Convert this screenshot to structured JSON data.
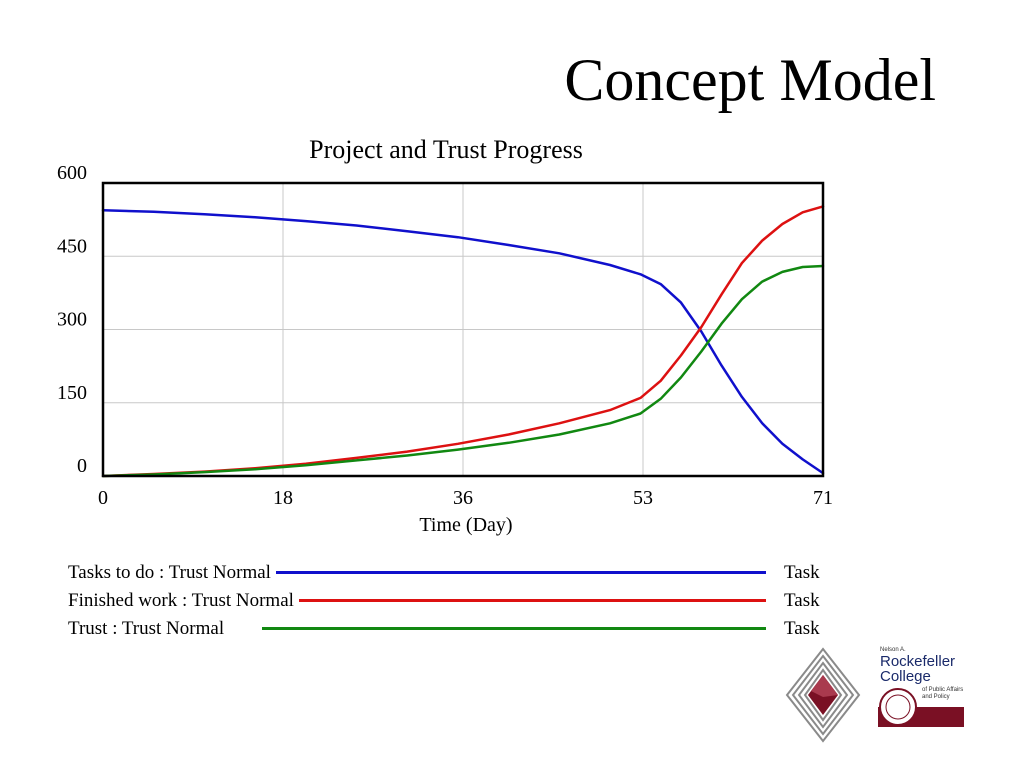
{
  "slide": {
    "title": "Concept Model"
  },
  "chart_data": {
    "type": "line",
    "title": "Project and Trust Progress",
    "xlabel": "Time (Day)",
    "ylabel": "",
    "xlim": [
      0,
      71
    ],
    "ylim": [
      0,
      600
    ],
    "x_ticks": [
      "0",
      "18",
      "36",
      "53",
      "71"
    ],
    "x_tick_values": [
      0,
      17.75,
      35.5,
      53.25,
      71
    ],
    "y_ticks": [
      "0",
      "150",
      "300",
      "450",
      "600"
    ],
    "y_tick_values": [
      0,
      150,
      300,
      450,
      600
    ],
    "grid": true,
    "legend_position": "bottom",
    "x": [
      0,
      5,
      10,
      15,
      20,
      25,
      30,
      35,
      40,
      45,
      50,
      53,
      55,
      57,
      59,
      61,
      63,
      65,
      67,
      69,
      71
    ],
    "series": [
      {
        "name": "Tasks to do : Trust Normal",
        "unit": "Task",
        "color": "#1010cc",
        "values": [
          544,
          541,
          536,
          530,
          522,
          513,
          501,
          489,
          473,
          456,
          432,
          413,
          393,
          355,
          296,
          226,
          162,
          108,
          66,
          34,
          6
        ]
      },
      {
        "name": "Finished work : Trust Normal",
        "unit": "Task",
        "color": "#dd1111",
        "values": [
          0,
          4,
          9,
          16,
          25,
          37,
          50,
          66,
          85,
          108,
          135,
          160,
          195,
          247,
          305,
          372,
          436,
          482,
          516,
          540,
          552
        ]
      },
      {
        "name": "Trust : Trust Normal",
        "unit": "Task",
        "color": "#118811",
        "values": [
          0,
          3,
          8,
          14,
          22,
          32,
          42,
          54,
          68,
          85,
          108,
          128,
          158,
          202,
          255,
          312,
          362,
          398,
          418,
          428,
          430
        ]
      }
    ]
  },
  "logos": {
    "college_line1": "Nelson A.",
    "college_line2": "Rockefeller",
    "college_line3": "College",
    "college_line4": "of Public Affairs",
    "college_line5": "and Policy",
    "colors": {
      "maroon": "#7a1024",
      "grey": "#8a8a8a"
    }
  }
}
